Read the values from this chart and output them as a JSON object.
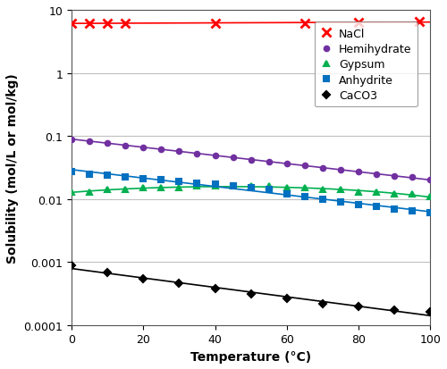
{
  "title": "",
  "xlabel": "Temperature (°C)",
  "ylabel": "Solubility (mol/L or mol/kg)",
  "xlim": [
    0,
    100
  ],
  "ylim": [
    0.0001,
    10
  ],
  "xticks": [
    0,
    20,
    40,
    60,
    80,
    100
  ],
  "yticks": [
    0.0001,
    0.001,
    0.01,
    0.1,
    1,
    10
  ],
  "ytick_labels": [
    "0.0001",
    "0.001",
    "0.01",
    "0.1",
    "1",
    "10"
  ],
  "series": {
    "NaCl": {
      "color": "#ff0000",
      "marker": "x",
      "markersize": 7,
      "markeredgewidth": 2,
      "line_color": "#ff0000",
      "line_width": 1.2,
      "data_x": [
        0,
        5,
        10,
        15,
        40,
        65,
        80,
        97
      ],
      "data_y": [
        6.1,
        6.1,
        6.1,
        6.15,
        6.2,
        6.2,
        6.3,
        6.45
      ]
    },
    "Hemihydrate": {
      "color": "#7030a0",
      "marker": "o",
      "markersize": 4,
      "line_color": "#7030a0",
      "line_width": 1.2,
      "data_x": [
        0,
        5,
        10,
        15,
        20,
        25,
        30,
        35,
        40,
        45,
        50,
        55,
        60,
        65,
        70,
        75,
        80,
        85,
        90,
        95,
        100
      ],
      "data_y": [
        0.088,
        0.082,
        0.077,
        0.071,
        0.066,
        0.062,
        0.057,
        0.053,
        0.049,
        0.046,
        0.042,
        0.039,
        0.036,
        0.034,
        0.031,
        0.029,
        0.027,
        0.025,
        0.023,
        0.022,
        0.02
      ]
    },
    "Gypsum": {
      "color": "#00b050",
      "marker": "^",
      "markersize": 5,
      "line_color": "#00b050",
      "line_width": 1.2,
      "data_x": [
        0,
        5,
        10,
        15,
        20,
        25,
        30,
        35,
        40,
        45,
        50,
        55,
        60,
        65,
        70,
        75,
        80,
        85,
        90,
        95,
        100
      ],
      "data_y": [
        0.013,
        0.013,
        0.014,
        0.014,
        0.015,
        0.015,
        0.015,
        0.016,
        0.016,
        0.016,
        0.016,
        0.016,
        0.015,
        0.015,
        0.014,
        0.014,
        0.013,
        0.013,
        0.012,
        0.012,
        0.011
      ]
    },
    "Anhydrite": {
      "color": "#0070c0",
      "marker": "s",
      "markersize": 4,
      "line_color": "#0070c0",
      "line_width": 1.2,
      "data_x": [
        0,
        5,
        10,
        15,
        20,
        25,
        30,
        35,
        40,
        45,
        50,
        55,
        60,
        65,
        70,
        75,
        80,
        85,
        90,
        95,
        100
      ],
      "data_y": [
        0.027,
        0.025,
        0.024,
        0.022,
        0.021,
        0.02,
        0.019,
        0.018,
        0.017,
        0.016,
        0.015,
        0.014,
        0.012,
        0.011,
        0.01,
        0.009,
        0.008,
        0.0075,
        0.007,
        0.0065,
        0.006
      ]
    },
    "CaCO3": {
      "color": "#000000",
      "marker": "D",
      "markersize": 4,
      "line_color": "#000000",
      "line_width": 1.2,
      "data_x": [
        0,
        10,
        20,
        30,
        40,
        50,
        60,
        70,
        80,
        90,
        100
      ],
      "data_y": [
        0.00088,
        0.00068,
        0.00055,
        0.00046,
        0.00038,
        0.00031,
        0.00026,
        0.00022,
        0.000195,
        0.000175,
        0.00016
      ]
    }
  },
  "legend_fontsize": 9,
  "tick_fontsize": 9,
  "axis_label_fontsize": 10,
  "bg_color": "#ffffff",
  "grid_color": "#c0c0c0"
}
